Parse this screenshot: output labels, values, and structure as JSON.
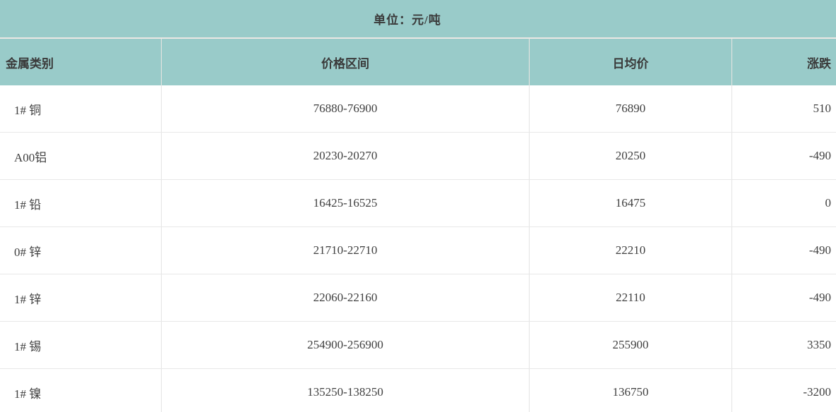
{
  "page": {
    "unit_label": "单位：元/吨"
  },
  "colors": {
    "header_bg": "#99cbc9",
    "header_divider": "#e9e7e3",
    "row_border": "#e8e8e8",
    "column_divider": "#e3e3e3",
    "text": "#3d3d3d",
    "body_bg": "#ffffff"
  },
  "chart_data": {
    "type": "table",
    "title": "单位：元/吨",
    "unit": "元/吨",
    "columns": [
      "金属类别",
      "价格区间",
      "日均价",
      "涨跌"
    ],
    "rows": [
      [
        "1# 铜",
        "76880-76900",
        "76890",
        "510"
      ],
      [
        "A00铝",
        "20230-20270",
        "20250",
        "-490"
      ],
      [
        "1# 铅",
        "16425-16525",
        "16475",
        "0"
      ],
      [
        "0# 锌",
        "21710-22710",
        "22210",
        "-490"
      ],
      [
        "1# 锌",
        "22060-22160",
        "22110",
        "-490"
      ],
      [
        "1# 锡",
        "254900-256900",
        "255900",
        "3350"
      ],
      [
        "1# 镍",
        "135250-138250",
        "136750",
        "-3200"
      ]
    ],
    "column_alignments": [
      "left",
      "center",
      "center",
      "right"
    ],
    "legend_position": "none",
    "grid": true
  }
}
